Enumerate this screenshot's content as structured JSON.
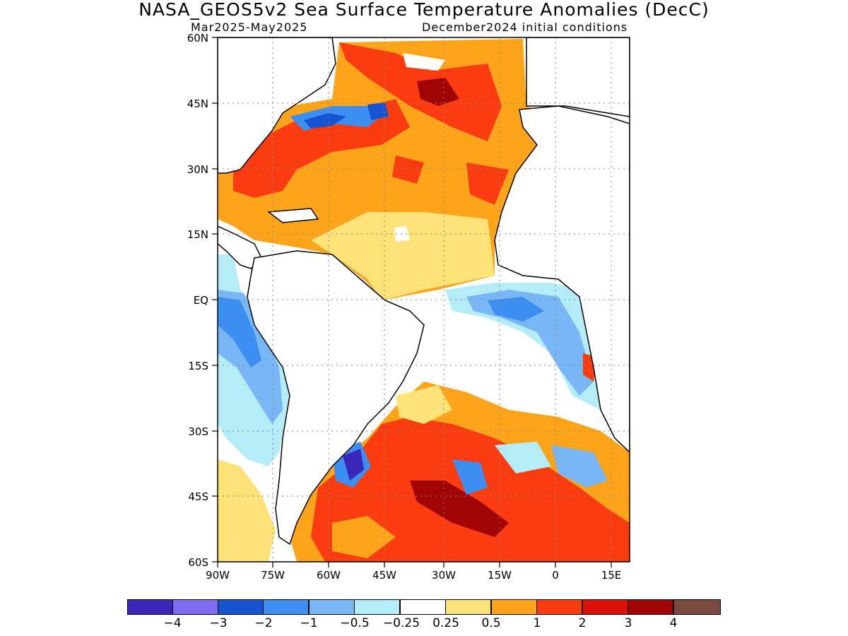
{
  "title": "NASA_GEOS5v2 Sea Surface Temperature Anomalies (DecC)",
  "subtitle_left": "Mar2025-May2025",
  "subtitle_right": "December2024 initial conditions",
  "lat_labels": [
    "60N",
    "45N",
    "30N",
    "15N",
    "EQ",
    "15S",
    "30S",
    "45S",
    "60S"
  ],
  "lon_labels": [
    "90W",
    "75W",
    "60W",
    "45W",
    "30W",
    "15W",
    "0",
    "15E"
  ],
  "colorbar": {
    "colors": [
      "#3a26b8",
      "#7e6cf0",
      "#1454d0",
      "#3c8ef0",
      "#78b6f6",
      "#b4ecf8",
      "#ffffff",
      "#fde277",
      "#fda41a",
      "#fb3c10",
      "#dc1208",
      "#a00404",
      "#7a4a3e"
    ],
    "labels": [
      "-4",
      "-3",
      "-2",
      "-1",
      "-0.5",
      "-0.25",
      "0.25",
      "0.5",
      "1",
      "2",
      "3",
      "4"
    ]
  },
  "map_colors": {
    "land": "#ffffff",
    "coast": "#000000",
    "grid": "#8a8a8a"
  }
}
